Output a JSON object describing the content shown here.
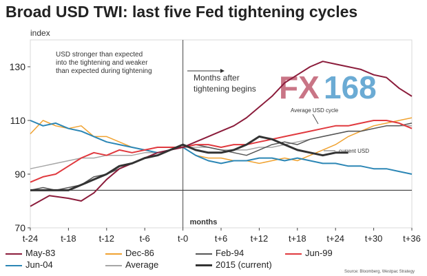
{
  "header": {
    "title": "Broad USD TWI: last five Fed tightening cycles"
  },
  "source": "Source: Bloomberg, Westpac Strategy",
  "watermark": "FX168",
  "colors": {
    "may83": "#8b1c3b",
    "dec86": "#f0a230",
    "feb94": "#555555",
    "jun99": "#e0393e",
    "jun04": "#2b86b5",
    "average": "#a6a6a6",
    "current": "#333333",
    "fx": "#b7475e",
    "num": "#3a8fc6"
  },
  "chart_data": {
    "type": "line",
    "title": "Broad USD TWI: last five Fed tightening cycles",
    "ylabel": "index",
    "xlabel": "months",
    "ylim": [
      70,
      140
    ],
    "xlim": [
      -24,
      36
    ],
    "yticks": [
      70,
      90,
      110,
      130
    ],
    "xticks": [
      {
        "v": -24,
        "label": "t-24"
      },
      {
        "v": -18,
        "label": "t-18"
      },
      {
        "v": -12,
        "label": "t-12"
      },
      {
        "v": -6,
        "label": "t-6"
      },
      {
        "v": 0,
        "label": "t-0"
      },
      {
        "v": 6,
        "label": "t+6"
      },
      {
        "v": 12,
        "label": "t+12"
      },
      {
        "v": 18,
        "label": "t+18"
      },
      {
        "v": 24,
        "label": "t+24"
      },
      {
        "v": 30,
        "label": "t+30"
      },
      {
        "v": 36,
        "label": "t+36"
      }
    ],
    "series": [
      {
        "name": "May-83",
        "colorKey": "may83",
        "width": 2,
        "x": [
          -24,
          -21,
          -18,
          -16,
          -14,
          -12,
          -10,
          -8,
          -6,
          -4,
          -2,
          0,
          2,
          4,
          6,
          8,
          10,
          12,
          14,
          16,
          18,
          20,
          22,
          24,
          26,
          28,
          30,
          32,
          34,
          36
        ],
        "values": [
          78,
          82,
          81,
          80,
          83,
          88,
          92,
          94,
          96,
          98,
          99,
          100,
          102,
          104,
          106,
          108,
          111,
          115,
          119,
          124,
          127,
          130,
          132,
          131,
          130,
          129,
          127,
          126,
          122,
          119
        ]
      },
      {
        "name": "Dec-86",
        "colorKey": "dec86",
        "width": 1.5,
        "x": [
          -24,
          -22,
          -20,
          -18,
          -16,
          -14,
          -12,
          -10,
          -8,
          -6,
          -4,
          -2,
          0,
          2,
          4,
          6,
          8,
          10,
          12,
          14,
          16,
          18,
          20,
          22,
          24,
          26,
          28,
          30,
          32,
          34,
          36
        ],
        "values": [
          105,
          110,
          108,
          107,
          108,
          104,
          104,
          102,
          100,
          99,
          98,
          99,
          100,
          97,
          96,
          96,
          95,
          95,
          94,
          95,
          96,
          95,
          97,
          99,
          101,
          104,
          106,
          108,
          109,
          110,
          111
        ]
      },
      {
        "name": "Feb-94",
        "colorKey": "feb94",
        "width": 1.5,
        "x": [
          -24,
          -22,
          -20,
          -18,
          -16,
          -14,
          -12,
          -10,
          -8,
          -6,
          -4,
          -2,
          0,
          2,
          4,
          6,
          8,
          10,
          12,
          14,
          16,
          18,
          20,
          22,
          24,
          26,
          28,
          30,
          32,
          34,
          36
        ],
        "values": [
          84,
          85,
          84,
          85,
          86,
          89,
          90,
          92,
          94,
          96,
          97,
          99,
          100,
          101,
          100,
          99,
          98,
          97,
          99,
          101,
          102,
          101,
          103,
          104,
          105,
          106,
          106,
          107,
          108,
          108,
          109
        ]
      },
      {
        "name": "Jun-99",
        "colorKey": "jun99",
        "width": 2,
        "x": [
          -24,
          -22,
          -20,
          -18,
          -16,
          -14,
          -12,
          -10,
          -8,
          -6,
          -4,
          -2,
          0,
          2,
          4,
          6,
          8,
          10,
          12,
          14,
          16,
          18,
          20,
          22,
          24,
          26,
          28,
          30,
          32,
          34,
          36
        ],
        "values": [
          87,
          89,
          90,
          93,
          96,
          98,
          97,
          99,
          98,
          99,
          100,
          100,
          100,
          101,
          101,
          100,
          101,
          101,
          102,
          103,
          104,
          105,
          106,
          107,
          108,
          108,
          109,
          110,
          110,
          109,
          107
        ]
      },
      {
        "name": "Jun-04",
        "colorKey": "jun04",
        "width": 2,
        "x": [
          -24,
          -22,
          -20,
          -18,
          -16,
          -14,
          -12,
          -10,
          -8,
          -6,
          -4,
          -2,
          0,
          2,
          4,
          6,
          8,
          10,
          12,
          14,
          16,
          18,
          20,
          22,
          24,
          26,
          28,
          30,
          32,
          34,
          36
        ],
        "values": [
          110,
          108,
          109,
          107,
          106,
          104,
          102,
          101,
          100,
          99,
          98,
          99,
          100,
          97,
          95,
          94,
          95,
          95,
          96,
          96,
          95,
          96,
          95,
          94,
          94,
          93,
          93,
          92,
          92,
          91,
          90
        ]
      },
      {
        "name": "Average",
        "colorKey": "average",
        "width": 1.5,
        "x": [
          -24,
          -22,
          -20,
          -18,
          -16,
          -14,
          -12,
          -10,
          -8,
          -6,
          -4,
          -2,
          0,
          2,
          4,
          6,
          8,
          10,
          12,
          14,
          16,
          18,
          20,
          22,
          24,
          26,
          28,
          30,
          32,
          34,
          36
        ],
        "values": [
          92,
          93,
          94,
          95,
          96,
          96,
          97,
          97,
          97,
          98,
          98,
          99,
          100,
          100,
          100,
          99,
          99,
          99,
          100,
          100,
          101,
          102,
          103,
          104,
          105,
          106,
          106,
          107,
          108,
          108,
          108
        ]
      },
      {
        "name": "2015 (current)",
        "colorKey": "current",
        "width": 3,
        "x": [
          -24,
          -22,
          -20,
          -18,
          -16,
          -14,
          -12,
          -10,
          -8,
          -6,
          -4,
          -2,
          0,
          2,
          4,
          6,
          8,
          10,
          12,
          14,
          16,
          18,
          20,
          22,
          24,
          26
        ],
        "values": [
          84,
          84,
          84,
          84,
          86,
          88,
          90,
          93,
          94,
          96,
          97,
          99,
          101,
          99,
          98,
          98,
          99,
          101,
          104,
          103,
          101,
          99,
          98,
          97,
          98,
          98
        ]
      }
    ],
    "annotations": [
      {
        "text": "USD stronger than expected"
      },
      {
        "text": "into the tightening and weaker"
      },
      {
        "text": "than expected during tightening"
      },
      {
        "text": "Months after"
      },
      {
        "text": "tightening begins"
      },
      {
        "text": "Average USD cycle"
      },
      {
        "text": "current USD"
      }
    ]
  }
}
